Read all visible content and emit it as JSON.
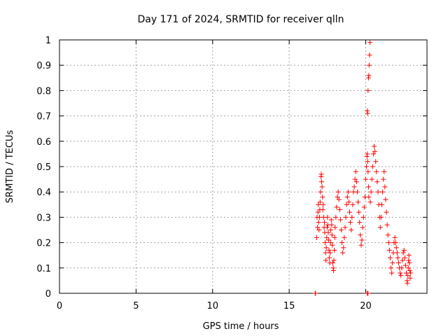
{
  "chart_data": {
    "type": "scatter",
    "title": "Day 171 of 2024, SRMTID for receiver qlln",
    "xlabel": "GPS time / hours",
    "ylabel": "SRMTID / TECUs",
    "xlim": [
      0,
      24
    ],
    "ylim": [
      0,
      1
    ],
    "x_ticks": [
      0,
      5,
      10,
      15,
      20
    ],
    "x_tick_labels": [
      "0",
      "5",
      "10",
      "15",
      "20"
    ],
    "y_ticks": [
      0,
      0.1,
      0.2,
      0.3,
      0.4,
      0.5,
      0.6,
      0.7,
      0.8,
      0.9,
      1
    ],
    "y_tick_labels": [
      "0",
      "0.1",
      "0.2",
      "0.3",
      "0.4",
      "0.5",
      "0.6",
      "0.7",
      "0.8",
      "0.9",
      "1"
    ],
    "grid": true,
    "marker": "+",
    "series": [
      {
        "name": "SRMTID",
        "color": "#ff0000",
        "points": [
          [
            16.7,
            0.0
          ],
          [
            16.72,
            0.0
          ],
          [
            20.1,
            0.0
          ],
          [
            20.15,
            0.0
          ],
          [
            16.8,
            0.22
          ],
          [
            16.82,
            0.3
          ],
          [
            16.85,
            0.26
          ],
          [
            16.88,
            0.32
          ],
          [
            16.9,
            0.35
          ],
          [
            16.92,
            0.28
          ],
          [
            16.95,
            0.25
          ],
          [
            16.98,
            0.3
          ],
          [
            17.0,
            0.33
          ],
          [
            17.02,
            0.36
          ],
          [
            17.05,
            0.4
          ],
          [
            17.08,
            0.46
          ],
          [
            17.1,
            0.47
          ],
          [
            17.12,
            0.44
          ],
          [
            17.15,
            0.42
          ],
          [
            17.18,
            0.38
          ],
          [
            17.2,
            0.33
          ],
          [
            17.22,
            0.35
          ],
          [
            17.25,
            0.3
          ],
          [
            17.28,
            0.26
          ],
          [
            17.3,
            0.28
          ],
          [
            17.32,
            0.24
          ],
          [
            17.35,
            0.2
          ],
          [
            17.38,
            0.16
          ],
          [
            17.4,
            0.13
          ],
          [
            17.42,
            0.18
          ],
          [
            17.45,
            0.22
          ],
          [
            17.48,
            0.26
          ],
          [
            17.5,
            0.3
          ],
          [
            17.52,
            0.27
          ],
          [
            17.55,
            0.24
          ],
          [
            17.58,
            0.21
          ],
          [
            17.6,
            0.17
          ],
          [
            17.62,
            0.14
          ],
          [
            17.65,
            0.12
          ],
          [
            17.68,
            0.16
          ],
          [
            17.7,
            0.2
          ],
          [
            17.72,
            0.25
          ],
          [
            17.75,
            0.29
          ],
          [
            17.78,
            0.27
          ],
          [
            17.8,
            0.23
          ],
          [
            17.82,
            0.19
          ],
          [
            17.85,
            0.12
          ],
          [
            17.88,
            0.1
          ],
          [
            17.9,
            0.09
          ],
          [
            17.92,
            0.13
          ],
          [
            17.95,
            0.17
          ],
          [
            17.98,
            0.22
          ],
          [
            18.0,
            0.26
          ],
          [
            18.05,
            0.3
          ],
          [
            18.1,
            0.34
          ],
          [
            18.15,
            0.38
          ],
          [
            18.2,
            0.4
          ],
          [
            18.25,
            0.37
          ],
          [
            18.3,
            0.33
          ],
          [
            18.35,
            0.29
          ],
          [
            18.4,
            0.25
          ],
          [
            18.45,
            0.2
          ],
          [
            18.5,
            0.16
          ],
          [
            18.55,
            0.18
          ],
          [
            18.6,
            0.22
          ],
          [
            18.65,
            0.26
          ],
          [
            18.7,
            0.3
          ],
          [
            18.75,
            0.35
          ],
          [
            18.8,
            0.38
          ],
          [
            18.85,
            0.4
          ],
          [
            18.9,
            0.36
          ],
          [
            18.95,
            0.32
          ],
          [
            19.0,
            0.28
          ],
          [
            19.05,
            0.25
          ],
          [
            19.1,
            0.3
          ],
          [
            19.15,
            0.35
          ],
          [
            19.2,
            0.4
          ],
          [
            19.25,
            0.42
          ],
          [
            19.3,
            0.45
          ],
          [
            19.35,
            0.48
          ],
          [
            19.4,
            0.44
          ],
          [
            19.45,
            0.4
          ],
          [
            19.5,
            0.36
          ],
          [
            19.55,
            0.32
          ],
          [
            19.6,
            0.28
          ],
          [
            19.65,
            0.23
          ],
          [
            19.7,
            0.19
          ],
          [
            19.75,
            0.21
          ],
          [
            19.8,
            0.26
          ],
          [
            19.85,
            0.3
          ],
          [
            19.9,
            0.34
          ],
          [
            19.95,
            0.38
          ],
          [
            20.0,
            0.45
          ],
          [
            20.05,
            0.5
          ],
          [
            20.08,
            0.54
          ],
          [
            20.1,
            0.55
          ],
          [
            20.12,
            0.52
          ],
          [
            20.15,
            0.48
          ],
          [
            20.18,
            0.42
          ],
          [
            20.2,
            0.38
          ],
          [
            20.1,
            0.72
          ],
          [
            20.12,
            0.71
          ],
          [
            20.15,
            0.8
          ],
          [
            20.18,
            0.85
          ],
          [
            20.2,
            0.86
          ],
          [
            20.22,
            0.9
          ],
          [
            20.25,
            0.94
          ],
          [
            20.28,
            0.99
          ],
          [
            20.3,
            0.36
          ],
          [
            20.35,
            0.4
          ],
          [
            20.4,
            0.45
          ],
          [
            20.45,
            0.5
          ],
          [
            20.5,
            0.55
          ],
          [
            20.55,
            0.58
          ],
          [
            20.6,
            0.56
          ],
          [
            20.65,
            0.52
          ],
          [
            20.7,
            0.48
          ],
          [
            20.75,
            0.44
          ],
          [
            20.8,
            0.4
          ],
          [
            20.85,
            0.35
          ],
          [
            20.9,
            0.3
          ],
          [
            20.95,
            0.26
          ],
          [
            21.0,
            0.3
          ],
          [
            21.05,
            0.35
          ],
          [
            21.1,
            0.4
          ],
          [
            21.15,
            0.45
          ],
          [
            21.2,
            0.48
          ],
          [
            21.25,
            0.42
          ],
          [
            21.3,
            0.37
          ],
          [
            21.35,
            0.32
          ],
          [
            21.4,
            0.27
          ],
          [
            21.45,
            0.23
          ],
          [
            21.5,
            0.2
          ],
          [
            21.55,
            0.17
          ],
          [
            21.6,
            0.14
          ],
          [
            21.65,
            0.1
          ],
          [
            21.7,
            0.08
          ],
          [
            21.75,
            0.12
          ],
          [
            21.8,
            0.16
          ],
          [
            21.85,
            0.2
          ],
          [
            21.9,
            0.22
          ],
          [
            21.95,
            0.2
          ],
          [
            22.0,
            0.18
          ],
          [
            22.05,
            0.16
          ],
          [
            22.1,
            0.14
          ],
          [
            22.15,
            0.12
          ],
          [
            22.2,
            0.1
          ],
          [
            22.25,
            0.08
          ],
          [
            22.3,
            0.07
          ],
          [
            22.35,
            0.1
          ],
          [
            22.4,
            0.13
          ],
          [
            22.45,
            0.16
          ],
          [
            22.5,
            0.17
          ],
          [
            22.55,
            0.14
          ],
          [
            22.6,
            0.11
          ],
          [
            22.65,
            0.08
          ],
          [
            22.7,
            0.05
          ],
          [
            22.72,
            0.04
          ],
          [
            22.75,
            0.07
          ],
          [
            22.78,
            0.1
          ],
          [
            22.8,
            0.13
          ],
          [
            22.82,
            0.15
          ],
          [
            22.85,
            0.12
          ],
          [
            22.88,
            0.09
          ],
          [
            22.9,
            0.06
          ],
          [
            22.92,
            0.08
          ]
        ]
      }
    ]
  }
}
